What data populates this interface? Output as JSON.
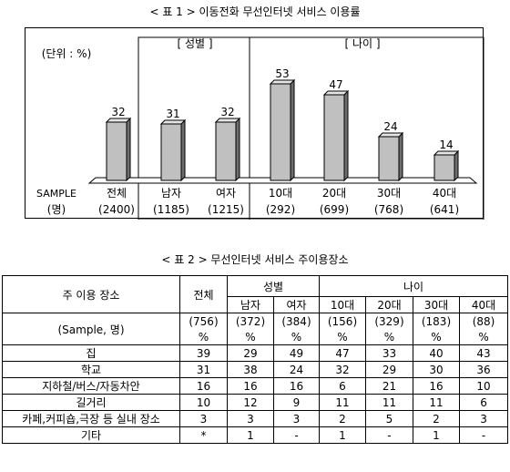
{
  "captions": {
    "chart": "< 표 1 > 이동전화 무선인터넷 서비스 이용률",
    "table": "< 표 2 > 무선인터넷 서비스 주이용장소"
  },
  "chart_data": {
    "type": "bar",
    "title": "< 표 1 > 이동전화 무선인터넷 서비스 이용률",
    "unit_label": "(단위 : %)",
    "group_labels": [
      "[ 성별 ]",
      "[ 나이 ]"
    ],
    "sample_label": [
      "SAMPLE",
      "(명)"
    ],
    "categories": [
      "전체",
      "남자",
      "여자",
      "10대",
      "20대",
      "30대",
      "40대"
    ],
    "samples": [
      "(2400)",
      "(1185)",
      "(1215)",
      "(292)",
      "(699)",
      "(768)",
      "(641)"
    ],
    "values": [
      32,
      31,
      32,
      53,
      47,
      24,
      14
    ],
    "ylim": [
      0,
      60
    ],
    "bar_color": "#c0c0c0"
  },
  "table": {
    "header": {
      "place": "주 이용 장소",
      "total": "전체",
      "gender": "성별",
      "age": "나이",
      "sub": [
        "남자",
        "여자",
        "10대",
        "20대",
        "30대",
        "40대"
      ]
    },
    "sample_row": {
      "label": "(Sample, 명)",
      "counts": [
        "(756)",
        "(372)",
        "(384)",
        "(156)",
        "(329)",
        "(183)",
        "(88)"
      ],
      "unit": "%"
    },
    "rows": [
      {
        "label": "집",
        "values": [
          "39",
          "29",
          "49",
          "47",
          "33",
          "40",
          "43"
        ]
      },
      {
        "label": "학교",
        "values": [
          "31",
          "38",
          "24",
          "32",
          "29",
          "30",
          "36"
        ]
      },
      {
        "label": "지하철/버스/자동차안",
        "values": [
          "16",
          "16",
          "16",
          "6",
          "21",
          "16",
          "10"
        ]
      },
      {
        "label": "길거리",
        "values": [
          "10",
          "12",
          "9",
          "11",
          "11",
          "11",
          "6"
        ]
      },
      {
        "label": "카페,커피숍,극장 등 실내 장소",
        "values": [
          "3",
          "3",
          "3",
          "2",
          "5",
          "2",
          "3"
        ]
      },
      {
        "label": "기타",
        "values": [
          "*",
          "1",
          "-",
          "1",
          "-",
          "1",
          "-"
        ]
      }
    ]
  }
}
